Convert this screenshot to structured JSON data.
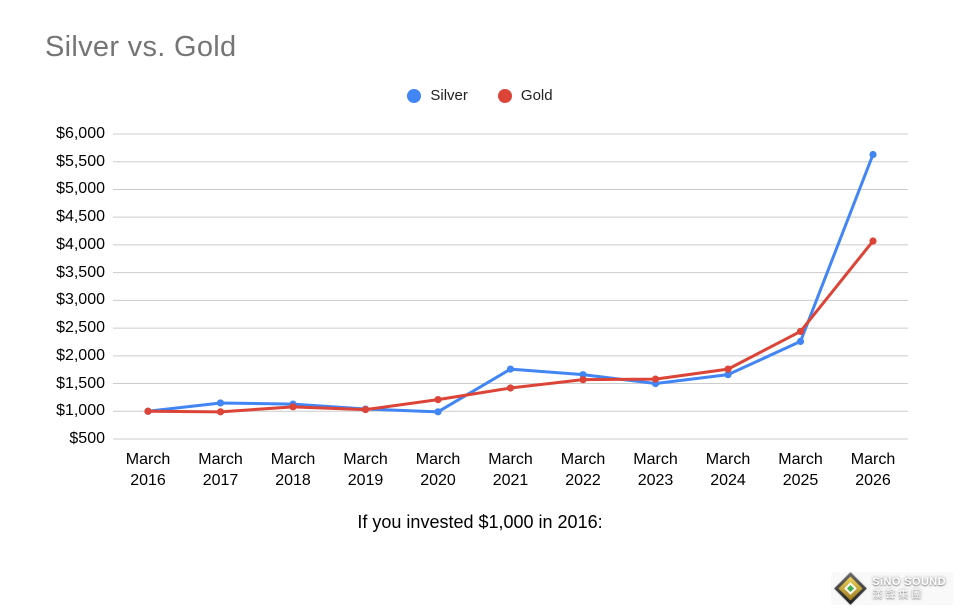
{
  "chart_data": {
    "type": "line",
    "title": "Silver vs. Gold",
    "caption": "If you invested $1,000 in 2016:",
    "categories": [
      "March 2016",
      "March 2017",
      "March 2018",
      "March 2019",
      "March 2020",
      "March 2021",
      "March 2022",
      "March 2023",
      "March 2024",
      "March 2025",
      "March 2026"
    ],
    "series": [
      {
        "name": "Silver",
        "color": "#4285F4",
        "values": [
          1000,
          1150,
          1130,
          1040,
          990,
          1760,
          1660,
          1500,
          1660,
          2260,
          5630
        ]
      },
      {
        "name": "Gold",
        "color": "#DB4437",
        "values": [
          1000,
          990,
          1080,
          1030,
          1210,
          1420,
          1570,
          1580,
          1760,
          2440,
          4070
        ]
      }
    ],
    "y_axis": {
      "min": 500,
      "max": 6000,
      "step": 500,
      "tick_labels": [
        "$6,000",
        "$5,500",
        "$5,000",
        "$4,500",
        "$4,000",
        "$3,500",
        "$3,000",
        "$2,500",
        "$2,000",
        "$1,500",
        "$1,000",
        "$500"
      ]
    },
    "grid": true,
    "grid_color": "#cccccc",
    "legend_position": "top",
    "title_color": "#757575"
  },
  "watermark": {
    "brand": "SiNO SOUND",
    "cjk_name": "漢聲集團"
  }
}
